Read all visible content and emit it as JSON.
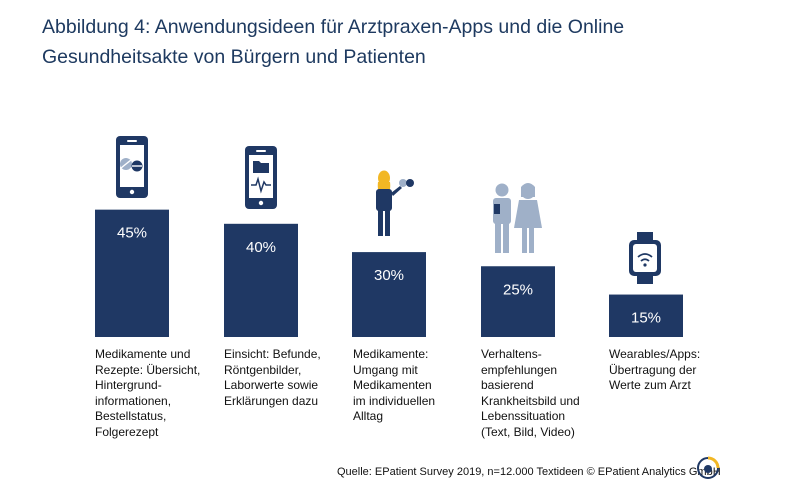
{
  "title": {
    "line1": "Abbildung 4: Anwendungsideen für Arztpraxen-Apps und die Online",
    "line2": "Gesundheitsakte von Bürgern und Patienten"
  },
  "chart_data": {
    "type": "bar",
    "title": "Abbildung 4: Anwendungsideen für Arztpraxen-Apps und die Online Gesundheitsakte von Bürgern und Patienten",
    "categories": [
      "Medikamente und Rezepte: Übersicht, Hintergrund-informationen, Bestellstatus, Folgerezept",
      "Einsicht: Befunde, Röntgenbilder, Laborwerte sowie Erklärungen dazu",
      "Medikamente: Umgang mit Medikamenten im individuellen Alltag",
      "Verhaltens-empfehlungen basierend Krankheitsbild und Lebenssituation (Text, Bild, Video)",
      "Wearables/Apps: Übertragung der Werte zum Arzt"
    ],
    "values": [
      45,
      40,
      30,
      25,
      15
    ],
    "value_labels": [
      "45%",
      "40%",
      "30%",
      "25%",
      "15%"
    ],
    "label_lines": [
      [
        "Medikamente und",
        "Rezepte:  Übersicht,",
        "Hintergrund-",
        "informationen,",
        "Bestellstatus,",
        "Folgerezept"
      ],
      [
        "Einsicht: Befunde,",
        "Röntgenbilder,",
        "Laborwerte sowie",
        "Erklärungen dazu"
      ],
      [
        "Medikamente:",
        "Umgang mit",
        "Medikamenten",
        "im individuellen",
        "Alltag"
      ],
      [
        "Verhaltens-",
        "empfehlungen",
        "basierend",
        "Krankheitsbild und",
        "Lebenssituation",
        "(Text, Bild, Video)"
      ],
      [
        "Wearables/Apps:",
        "Übertragung der",
        "Werte zum Arzt"
      ]
    ],
    "icons": [
      "phone-pills-icon",
      "phone-folder-ecg-icon",
      "woman-with-pill-icon",
      "patient-couple-icon",
      "smartwatch-wifi-icon"
    ],
    "ylim": [
      0,
      45
    ],
    "xlabel": "",
    "ylabel": "",
    "grid": false
  },
  "colors": {
    "bar": "#1f3864",
    "bar_text": "#ffffff",
    "icon_dark": "#1f3864",
    "icon_light": "#9fb0c8",
    "woman_hair": "#f2b724",
    "title": "#1e3a60"
  },
  "source": "Quelle: EPatient Survey 2019, n=12.000 Textideen  © EPatient Analytics GmbH"
}
